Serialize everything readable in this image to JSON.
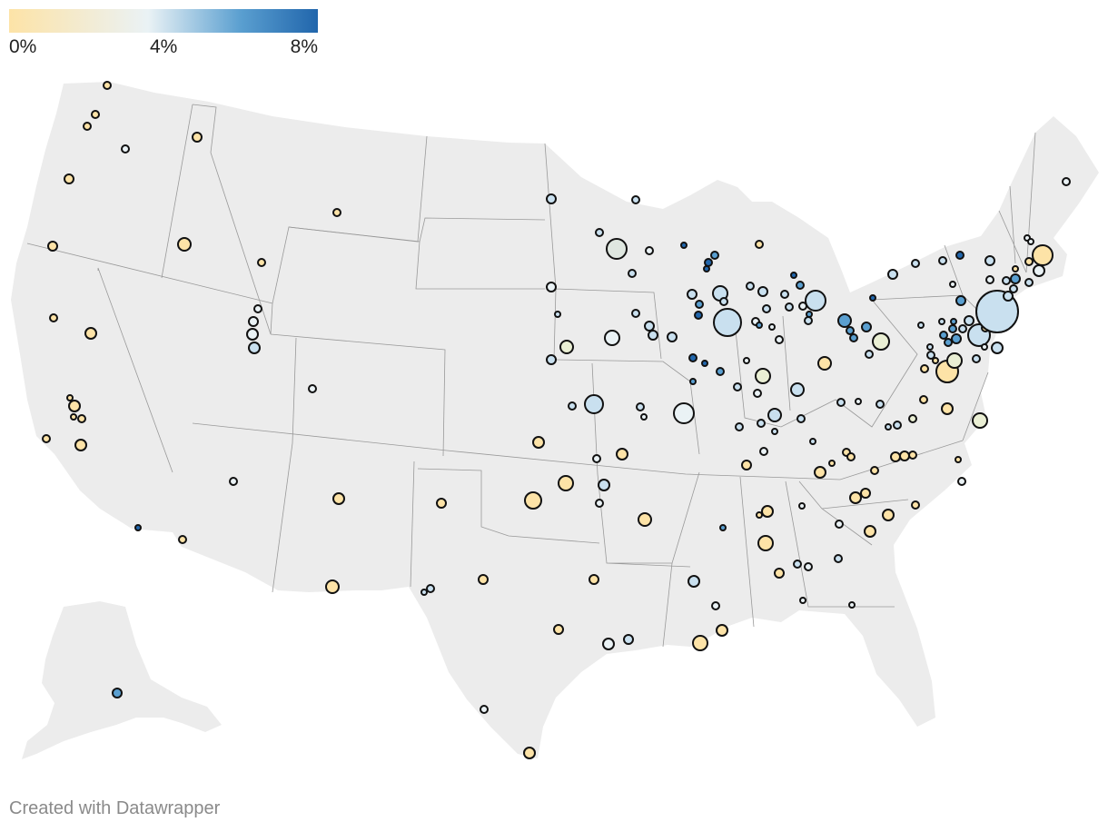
{
  "legend": {
    "ticks": [
      "0%",
      "4%",
      "8%"
    ],
    "color_low": "#fde3a7",
    "color_mid": "#eaf2f5",
    "color_high": "#2166ac"
  },
  "credit": "Created with Datawrapper",
  "colors": {
    "land": "#ececec",
    "border": "#999999",
    "bubble_stroke": "#111111"
  }
}
